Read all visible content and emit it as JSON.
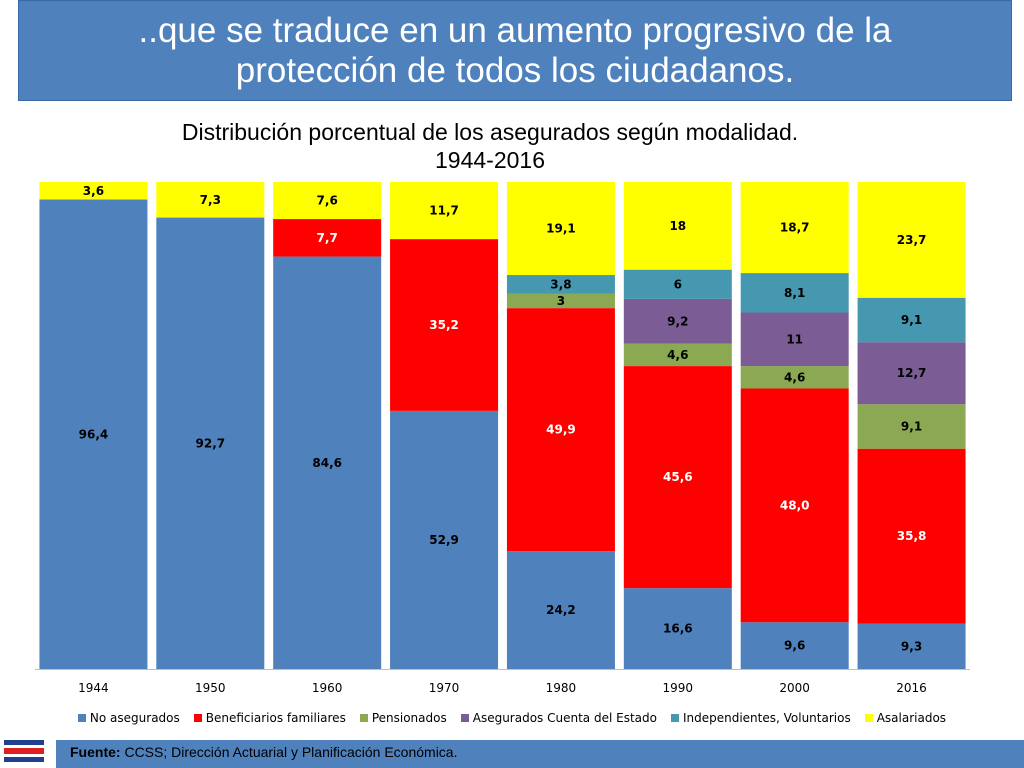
{
  "header": {
    "title": "..que se traduce en un aumento progresivo de la protección de todos los ciudadanos."
  },
  "footer": {
    "source_label": "Fuente:",
    "source_text": " CCSS; Dirección Actuarial y Planificación Económica."
  },
  "colors": {
    "banner": "#4f81bd",
    "flag_blue": "#1f3f8f",
    "flag_red": "#e02020"
  },
  "chart_data": {
    "type": "bar",
    "stacked": true,
    "normalized": true,
    "title": "Distribución porcentual de los asegurados según modalidad.  1944-2016",
    "categories": [
      "1944",
      "1950",
      "1960",
      "1970",
      "1980",
      "1990",
      "2000",
      "2016"
    ],
    "ylim": [
      0,
      100
    ],
    "grid": false,
    "legend_position": "bottom",
    "series": [
      {
        "name": "No asegurados",
        "color": "#4f81bd",
        "values": [
          96.4,
          92.7,
          84.6,
          52.9,
          24.2,
          16.6,
          9.6,
          9.3
        ],
        "labels": [
          "96,4",
          "92,7",
          "84,6",
          "52,9",
          "24,2",
          "16,6",
          "9,6",
          "9,3"
        ]
      },
      {
        "name": "Beneficiarios familiares",
        "color": "#ff0000",
        "values": [
          0,
          0,
          7.7,
          35.2,
          49.9,
          45.6,
          48.0,
          35.8
        ],
        "labels": [
          "",
          "",
          "7,7",
          "35,2",
          "49,9",
          "45,6",
          "48,0",
          "35,8"
        ]
      },
      {
        "name": "Pensionados",
        "color": "#8aa952",
        "values": [
          0,
          0,
          0,
          0,
          3,
          4.6,
          4.6,
          9.1
        ],
        "labels": [
          "",
          "",
          "",
          "",
          "3",
          "4,6",
          "4,6",
          "9,1"
        ]
      },
      {
        "name": "Asegurados Cuenta del Estado",
        "color": "#7b5c95",
        "values": [
          0,
          0,
          0,
          0,
          0,
          9.2,
          11,
          12.7
        ],
        "labels": [
          "",
          "",
          "",
          "",
          "",
          "9,2",
          "11",
          "12,7"
        ]
      },
      {
        "name": "Independientes, Voluntarios",
        "color": "#4698b0",
        "values": [
          0,
          0,
          0,
          0,
          3.8,
          6,
          8.1,
          9.1
        ],
        "labels": [
          "",
          "",
          "",
          "",
          "3,8",
          "6",
          "8,1",
          "9,1"
        ]
      },
      {
        "name": "Asalariados",
        "color": "#ffff00",
        "values": [
          3.6,
          7.3,
          7.6,
          11.7,
          19.1,
          18,
          18.7,
          23.7
        ],
        "labels": [
          "3,6",
          "7,3",
          "7,6",
          "11,7",
          "19,1",
          "18",
          "18,7",
          "23,7"
        ]
      }
    ]
  }
}
